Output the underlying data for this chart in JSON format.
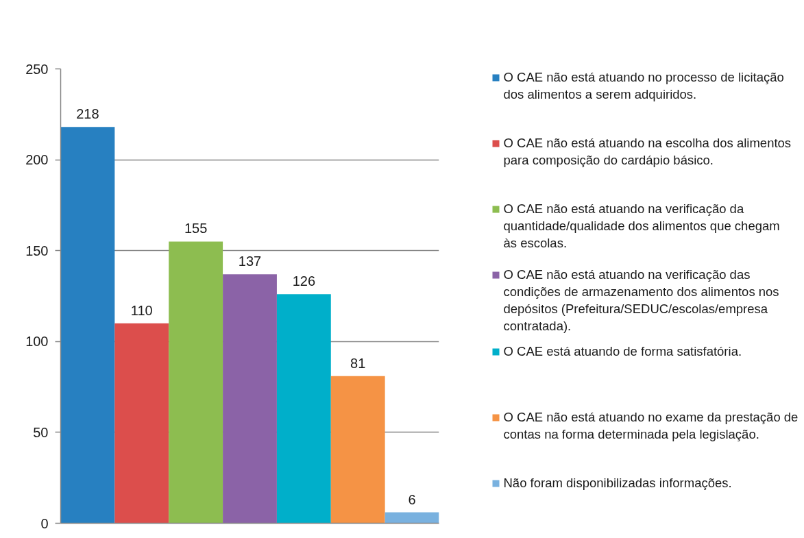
{
  "chart_data": {
    "type": "bar",
    "categories": [
      null
    ],
    "series": [
      {
        "name": "O CAE não está atuando no processo de licitação dos alimentos a serem adquiridos.",
        "color": "#2780c1",
        "values": [
          218
        ]
      },
      {
        "name": "O CAE não está atuando na escolha dos alimentos para composição do cardápio básico.",
        "color": "#dc4e4c",
        "values": [
          110
        ]
      },
      {
        "name": "O CAE não está atuando na verificação da quantidade/qualidade dos alimentos que chegam às escolas.",
        "color": "#8dbd50",
        "values": [
          155
        ]
      },
      {
        "name": "O CAE não está atuando na verificação das condições de armazenamento dos alimentos nos depósitos (Prefeitura/SEDUC/escolas/empresa contratada).",
        "color": "#8b63a7",
        "values": [
          137
        ]
      },
      {
        "name": "O CAE está atuando de forma satisfatória.",
        "color": "#00afca",
        "values": [
          126
        ]
      },
      {
        "name": "O CAE não está atuando no exame da prestação de contas na forma determinada pela legislação.",
        "color": "#f59345",
        "values": [
          81
        ]
      },
      {
        "name": "Não foram disponibilizadas informações.",
        "color": "#79b1df",
        "values": [
          6
        ]
      }
    ],
    "ylim": [
      0,
      250
    ],
    "yticks": [
      0,
      50,
      100,
      150,
      200,
      250
    ],
    "grid": "y",
    "legend": "right",
    "data_labels": true
  }
}
